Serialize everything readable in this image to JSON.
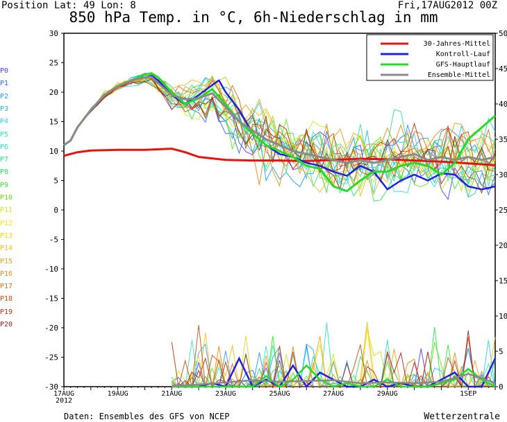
{
  "header": {
    "position": "Position   Lat: 49  Lon: 8",
    "run": "Fri,17AUG2012  00Z",
    "title": "850 hPa Temp. in °C, 6h-Niederschlag in mm"
  },
  "footer": {
    "source": "Daten: Ensembles des GFS von NCEP",
    "brand": "Wetterzentrale"
  },
  "members": [
    {
      "label": "P0",
      "color": "#4b3cff"
    },
    {
      "label": "P1",
      "color": "#2a6bff"
    },
    {
      "label": "P2",
      "color": "#2196ff"
    },
    {
      "label": "P3",
      "color": "#25b3f2"
    },
    {
      "label": "P4",
      "color": "#2ad2e6"
    },
    {
      "label": "P5",
      "color": "#33e3cc"
    },
    {
      "label": "P6",
      "color": "#28e6b0"
    },
    {
      "label": "P7",
      "color": "#2de68e"
    },
    {
      "label": "P8",
      "color": "#30e05c"
    },
    {
      "label": "P9",
      "color": "#38e033"
    },
    {
      "label": "P10",
      "color": "#66e01e"
    },
    {
      "label": "P11",
      "color": "#c9e61e"
    },
    {
      "label": "P12",
      "color": "#f0e618"
    },
    {
      "label": "P13",
      "color": "#f5d21e"
    },
    {
      "label": "P14",
      "color": "#f5bb1e"
    },
    {
      "label": "P15",
      "color": "#f0a01e"
    },
    {
      "label": "P16",
      "color": "#e6871e"
    },
    {
      "label": "P17",
      "color": "#dc6c1e"
    },
    {
      "label": "P18",
      "color": "#c84b14"
    },
    {
      "label": "P19",
      "color": "#b0320f"
    },
    {
      "label": "P20",
      "color": "#a02323"
    }
  ],
  "chart_data": {
    "type": "line",
    "xlabels": [
      "17AUG\n2012",
      "19AUG",
      "21AUG",
      "23AUG",
      "25AUG",
      "27AUG",
      "29AUG",
      "1SEP"
    ],
    "xlabel_days": [
      0,
      2,
      4,
      6,
      8,
      10,
      12,
      15
    ],
    "x_range_days": [
      0,
      16
    ],
    "ylim_left": [
      -30,
      30
    ],
    "yticks_left": [
      30,
      25,
      20,
      15,
      10,
      5,
      0,
      -5,
      -10,
      -15,
      -20,
      -25,
      -30
    ],
    "ylim_right": [
      0,
      50
    ],
    "yticks_right": [
      50,
      45,
      40,
      35,
      30,
      25,
      20,
      15,
      10,
      5,
      0
    ],
    "legend": [
      {
        "label": "30-Jahres-Mittel",
        "color": "#e8120c"
      },
      {
        "label": "Kontroll-Lauf",
        "color": "#2020e0"
      },
      {
        "label": "GFS-Hauptlauf",
        "color": "#22dd22"
      },
      {
        "label": "Ensemble-Mittel",
        "color": "#8a8a8a"
      }
    ],
    "legend_position": "top-right",
    "series": [
      {
        "name": "30-Jahres-Mittel",
        "color": "#e8120c",
        "x": [
          0,
          0.5,
          1,
          2,
          3,
          4,
          4.5,
          5,
          6,
          7,
          8,
          9,
          10,
          11,
          12,
          13,
          14,
          15,
          16
        ],
        "y": [
          9.2,
          9.8,
          10.1,
          10.2,
          10.2,
          10.4,
          9.8,
          9.0,
          8.5,
          8.4,
          8.4,
          8.3,
          8.5,
          8.7,
          8.6,
          8.4,
          8.2,
          7.9,
          7.6
        ]
      },
      {
        "name": "Kontroll-Lauf",
        "color": "#2020e0",
        "x": [
          0,
          0.25,
          0.5,
          1,
          1.5,
          2,
          2.5,
          3,
          3.25,
          3.5,
          4,
          4.5,
          5,
          5.5,
          5.75,
          6,
          6.5,
          7,
          7.5,
          8,
          8.5,
          9,
          9.5,
          10,
          10.5,
          11,
          11.5,
          12,
          12.5,
          13,
          13.5,
          14,
          14.5,
          15,
          15.5,
          16
        ],
        "y": [
          11.0,
          11.8,
          14,
          17,
          19.5,
          21,
          22,
          22.5,
          22.8,
          22,
          19.5,
          18,
          19.5,
          21.2,
          22,
          20,
          17,
          13,
          11,
          9.5,
          9,
          8,
          7.5,
          6.5,
          5.8,
          7.5,
          6.5,
          3.5,
          5,
          6,
          5,
          6.2,
          6,
          4,
          3.5,
          4
        ]
      },
      {
        "name": "GFS-Hauptlauf",
        "color": "#22dd22",
        "x": [
          0,
          0.25,
          0.5,
          1,
          1.5,
          2,
          2.5,
          3,
          3.25,
          3.5,
          4,
          4.5,
          5,
          5.5,
          6,
          6.5,
          7,
          7.5,
          8,
          8.5,
          9,
          9.5,
          10,
          10.5,
          11,
          11.5,
          12,
          12.5,
          13,
          13.5,
          14,
          14.5,
          15,
          15.5,
          16
        ],
        "y": [
          11.0,
          11.8,
          14,
          17,
          19.5,
          21,
          22,
          23,
          23.2,
          22.5,
          20,
          18,
          19,
          20.5,
          18,
          15,
          13,
          11,
          10,
          9,
          7.5,
          7,
          4,
          3.2,
          5,
          6.5,
          6.5,
          7.5,
          8,
          7.5,
          6,
          8,
          12,
          14,
          16
        ]
      },
      {
        "name": "Ensemble-Mittel",
        "color": "#8a8a8a",
        "x": [
          0,
          0.25,
          0.5,
          1,
          1.5,
          2,
          2.5,
          3,
          3.25,
          3.5,
          4,
          4.5,
          5,
          5.5,
          6,
          6.5,
          7,
          7.5,
          8,
          8.5,
          9,
          9.5,
          10,
          10.5,
          11,
          11.5,
          12,
          12.5,
          13,
          13.5,
          14,
          14.5,
          15,
          15.5,
          16
        ],
        "y": [
          11.0,
          11.8,
          14,
          17,
          19.5,
          21,
          22,
          22.5,
          22.6,
          21.5,
          19.5,
          18.8,
          19,
          19.8,
          17.5,
          15,
          13.5,
          12,
          11,
          10,
          9.5,
          9,
          8.5,
          8,
          8.5,
          8,
          8.5,
          9,
          9.5,
          8.5,
          9,
          8.5,
          9,
          8.5,
          9
        ]
      }
    ],
    "ensemble_envelope_note": "P0–P20 spaghetti lines spread roughly 2°C to 18°C after 25AUG",
    "precip_series": [
      {
        "name": "Kontroll-Lauf",
        "color": "#2020e0",
        "x": [
          4,
          5,
          5.5,
          6,
          6.5,
          7,
          7.5,
          8,
          8.5,
          9,
          9.5,
          10,
          10.5,
          11,
          11.5,
          12,
          12.5,
          13,
          13.5,
          14,
          14.5,
          15,
          15.5,
          16
        ],
        "y": [
          0,
          0,
          0.5,
          0,
          4,
          0,
          1,
          0,
          3,
          0,
          2,
          1,
          0,
          0,
          1,
          0,
          0.5,
          0,
          0,
          1,
          2,
          0,
          0,
          4
        ]
      },
      {
        "name": "GFS-Hauptlauf",
        "color": "#22dd22",
        "x": [
          4,
          5,
          5.5,
          6,
          6.5,
          7,
          7.5,
          8,
          8.5,
          9,
          9.5,
          10,
          10.5,
          11,
          11.5,
          12,
          12.5,
          13,
          13.5,
          14,
          14.5,
          15,
          15.5,
          16
        ],
        "y": [
          0,
          0,
          0,
          0,
          0,
          0,
          1.5,
          0,
          1,
          3,
          1,
          0,
          0.5,
          0,
          0,
          1,
          0,
          0,
          0,
          0.5,
          1,
          2.5,
          1,
          0
        ]
      },
      {
        "name": "Ensemble-Mittel",
        "color": "#8a8a8a",
        "x": [
          4,
          5,
          6,
          7,
          8,
          9,
          10,
          11,
          12,
          13,
          14,
          15,
          15.5,
          16
        ],
        "y": [
          0.1,
          0.3,
          0.6,
          0.9,
          0.7,
          0.8,
          0.9,
          0.5,
          0.6,
          0.5,
          0.7,
          1.8,
          1.2,
          0.5
        ]
      }
    ]
  }
}
